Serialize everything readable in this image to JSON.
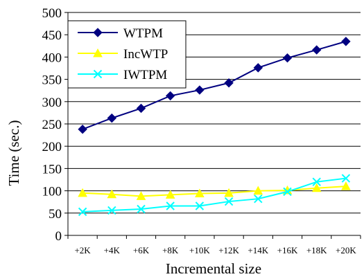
{
  "chart_data": {
    "type": "line",
    "xlabel": "Incremental size",
    "ylabel": "Time (sec.)",
    "categories": [
      "+2K",
      "+4K",
      "+6K",
      "+8K",
      "+10K",
      "+12K",
      "+14K",
      "+16K",
      "+18K",
      "+20K"
    ],
    "ylim": [
      0,
      500
    ],
    "yticks": [
      0,
      50,
      100,
      150,
      200,
      250,
      300,
      350,
      400,
      450,
      500
    ],
    "grid": "horizontal",
    "legend_position": "top-left",
    "series": [
      {
        "name": "WTPM",
        "color": "#000080",
        "marker": "diamond",
        "values": [
          238,
          263,
          285,
          313,
          326,
          342,
          376,
          398,
          416,
          435
        ]
      },
      {
        "name": "IncWTP",
        "color": "#ffff00",
        "marker": "triangle",
        "values": [
          95,
          92,
          88,
          91,
          94,
          95,
          100,
          101,
          106,
          110
        ]
      },
      {
        "name": "IWTPM",
        "color": "#00ffff",
        "marker": "x",
        "values": [
          53,
          56,
          59,
          66,
          66,
          76,
          82,
          98,
          120,
          128
        ]
      }
    ]
  }
}
